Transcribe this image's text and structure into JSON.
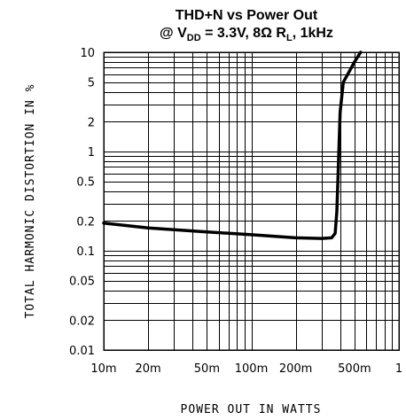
{
  "chart_data": {
    "type": "line",
    "title_line1": "THD+N vs Power Out",
    "title_line2": {
      "at": "@ V",
      "vdd_sub": "DD",
      "mid": " = 3.3V, 8Ω R",
      "rl_sub": "L",
      "end": ", 1kHz"
    },
    "xlabel": "POWER OUT IN WATTS",
    "ylabel": "TOTAL HARMONIC DISTORTION IN %",
    "x_scale": "log",
    "y_scale": "log",
    "xlim": [
      0.01,
      1
    ],
    "ylim": [
      0.01,
      10
    ],
    "grid": true,
    "x_ticks": [
      {
        "value": 0.01,
        "label": "10m"
      },
      {
        "value": 0.02,
        "label": "20m"
      },
      {
        "value": 0.05,
        "label": "50m"
      },
      {
        "value": 0.1,
        "label": "100m"
      },
      {
        "value": 0.2,
        "label": "200m"
      },
      {
        "value": 0.5,
        "label": "500m"
      },
      {
        "value": 1,
        "label": "1"
      }
    ],
    "y_ticks": [
      {
        "value": 10,
        "label": "10"
      },
      {
        "value": 5,
        "label": "5"
      },
      {
        "value": 2,
        "label": "2"
      },
      {
        "value": 1,
        "label": "1"
      },
      {
        "value": 0.5,
        "label": "0.5"
      },
      {
        "value": 0.2,
        "label": "0.2"
      },
      {
        "value": 0.1,
        "label": "0.1"
      },
      {
        "value": 0.05,
        "label": "0.05"
      },
      {
        "value": 0.02,
        "label": "0.02"
      },
      {
        "value": 0.01,
        "label": "0.01"
      }
    ],
    "series": [
      {
        "color": "#000000",
        "x": [
          0.01,
          0.02,
          0.05,
          0.1,
          0.2,
          0.3,
          0.35,
          0.37,
          0.38,
          0.39,
          0.4,
          0.42,
          0.45,
          0.5,
          0.55
        ],
        "y": [
          0.19,
          0.17,
          0.155,
          0.145,
          0.135,
          0.133,
          0.135,
          0.15,
          0.25,
          0.8,
          2.5,
          5.0,
          6.0,
          8.0,
          10.0
        ]
      }
    ]
  }
}
